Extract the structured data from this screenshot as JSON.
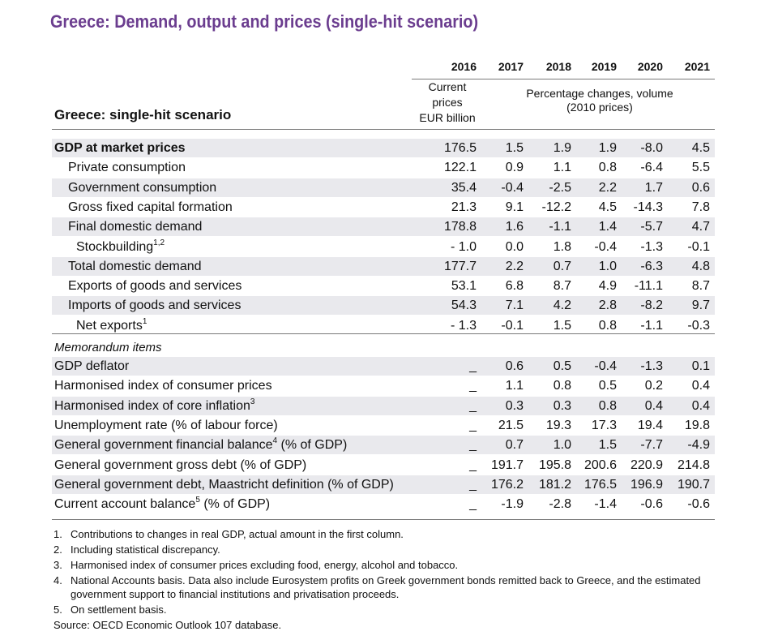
{
  "title": "Greece: Demand, output and prices (single-hit scenario)",
  "header": {
    "years": [
      "2016",
      "2017",
      "2018",
      "2019",
      "2020",
      "2021"
    ],
    "current_prices_lines": [
      "Current",
      "prices",
      "EUR billion"
    ],
    "pct_changes_lines": [
      "Percentage changes, volume",
      "(2010 prices)"
    ],
    "scenario_label": "Greece: single-hit scenario"
  },
  "rows": [
    {
      "label": "GDP at market prices",
      "sup": "",
      "values": [
        "176.5",
        "1.5",
        "1.9",
        "1.9",
        "-8.0",
        "4.5"
      ]
    },
    {
      "label": "Private consumption",
      "sup": "",
      "values": [
        "122.1",
        "0.9",
        "1.1",
        "0.8",
        "-6.4",
        "5.5"
      ]
    },
    {
      "label": "Government consumption",
      "sup": "",
      "values": [
        "35.4",
        "-0.4",
        "-2.5",
        "2.2",
        "1.7",
        "0.6"
      ]
    },
    {
      "label": "Gross fixed capital formation",
      "sup": "",
      "values": [
        "21.3",
        "9.1",
        "-12.2",
        "4.5",
        "-14.3",
        "7.8"
      ]
    },
    {
      "label": "Final domestic demand",
      "sup": "",
      "values": [
        "178.8",
        "1.6",
        "-1.1",
        "1.4",
        "-5.7",
        "4.7"
      ]
    },
    {
      "label": "Stockbuilding",
      "sup": "1,2",
      "values": [
        "- 1.0",
        "0.0",
        "1.8",
        "-0.4",
        "-1.3",
        "-0.1"
      ]
    },
    {
      "label": "Total domestic demand",
      "sup": "",
      "values": [
        "177.7",
        "2.2",
        "0.7",
        "1.0",
        "-6.3",
        "4.8"
      ]
    },
    {
      "label": "Exports of goods and services",
      "sup": "",
      "values": [
        "53.1",
        "6.8",
        "8.7",
        "4.9",
        "-11.1",
        "8.7"
      ]
    },
    {
      "label": "Imports of goods and services",
      "sup": "",
      "values": [
        "54.3",
        "7.1",
        "4.2",
        "2.8",
        "-8.2",
        "9.7"
      ]
    },
    {
      "label": "Net exports",
      "sup": "1",
      "values": [
        "- 1.3",
        "-0.1",
        "1.5",
        "0.8",
        "-1.1",
        "-0.3"
      ]
    }
  ],
  "memorandum_label": "Memorandum items",
  "memo_rows": [
    {
      "label": "GDP deflator",
      "sup": "",
      "suffix": "",
      "values": [
        "_",
        "0.6",
        "0.5",
        "-0.4",
        "-1.3",
        "0.1"
      ]
    },
    {
      "label": "Harmonised index of consumer prices",
      "sup": "",
      "suffix": "",
      "values": [
        "_",
        "1.1",
        "0.8",
        "0.5",
        "0.2",
        "0.4"
      ]
    },
    {
      "label": "Harmonised index of core inflation",
      "sup": "3",
      "suffix": "",
      "values": [
        "_",
        "0.3",
        "0.3",
        "0.8",
        "0.4",
        "0.4"
      ]
    },
    {
      "label": "Unemployment rate (% of labour force)",
      "sup": "",
      "suffix": "",
      "values": [
        "_",
        "21.5",
        "19.3",
        "17.3",
        "19.4",
        "19.8"
      ]
    },
    {
      "label": "General government financial balance",
      "sup": "4",
      "suffix": " (% of GDP)",
      "values": [
        "_",
        "0.7",
        "1.0",
        "1.5",
        "-7.7",
        "-4.9"
      ]
    },
    {
      "label": "General government gross debt (% of GDP)",
      "sup": "",
      "suffix": "",
      "values": [
        "_",
        "191.7",
        "195.8",
        "200.6",
        "220.9",
        "214.8"
      ]
    },
    {
      "label": "General government debt, Maastricht definition (% of GDP)",
      "sup": "",
      "suffix": "",
      "values": [
        "_",
        "176.2",
        "181.2",
        "176.5",
        "196.9",
        "190.7"
      ]
    },
    {
      "label": "Current account balance",
      "sup": "5",
      "suffix": " (% of GDP)",
      "values": [
        "_",
        "-1.9",
        "-2.8",
        "-1.4",
        "-0.6",
        "-0.6"
      ]
    }
  ],
  "notes": [
    {
      "num": "1.",
      "text": "Contributions to changes in real GDP, actual amount in the first column."
    },
    {
      "num": "2.",
      "text": "Including statistical discrepancy."
    },
    {
      "num": "3.",
      "text": "Harmonised index of consumer prices excluding food, energy, alcohol and tobacco."
    },
    {
      "num": "4.",
      "text": "National Accounts basis. Data also include Eurosystem profits on Greek government bonds remitted back to Greece, and the estimated government support to financial institutions and privatisation proceeds."
    },
    {
      "num": "5.",
      "text": "On settlement basis."
    }
  ],
  "source": "Source:  OECD Economic Outlook 107 database.",
  "colors": {
    "title": "#6b3d8f",
    "row_shading": "#e9e9ed",
    "rule": "#7a7a7a"
  }
}
